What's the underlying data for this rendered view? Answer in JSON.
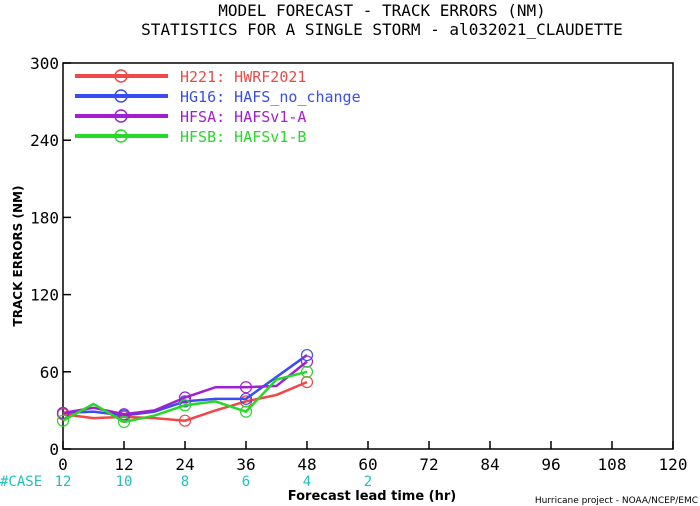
{
  "chart_data": {
    "type": "line",
    "title": "MODEL FORECAST - TRACK ERRORS (NM)",
    "subtitle": "STATISTICS FOR A SINGLE STORM - al032021_CLAUDETTE",
    "xlabel": "Forecast lead time (hr)",
    "ylabel": "TRACK ERRORS (NM)",
    "xlim": [
      0,
      120
    ],
    "ylim": [
      0,
      300
    ],
    "x_ticks": [
      "0",
      "12",
      "24",
      "36",
      "48",
      "60",
      "72",
      "84",
      "96",
      "108",
      "120"
    ],
    "y_ticks": [
      "0",
      "60",
      "120",
      "180",
      "240",
      "300"
    ],
    "grid": false,
    "legend_position": "top-left",
    "x": [
      0,
      6,
      12,
      18,
      24,
      30,
      36,
      42,
      48
    ],
    "series": [
      {
        "name": "H221: HWRF2021",
        "color": "#f04848",
        "values": [
          27,
          24,
          25,
          24,
          22,
          30,
          37,
          42,
          52
        ]
      },
      {
        "name": "HG16: HAFS_no_change",
        "color": "#3a4df0",
        "values": [
          28,
          29,
          26,
          29,
          37,
          39,
          39,
          56,
          73
        ]
      },
      {
        "name": "HFSA: HAFSv1-A",
        "color": "#a020d0",
        "values": [
          28,
          32,
          27,
          30,
          40,
          48,
          48,
          49,
          68
        ]
      },
      {
        "name": "HFSB: HAFSv1-B",
        "color": "#28d828",
        "values": [
          22,
          35,
          21,
          26,
          34,
          37,
          29,
          54,
          60
        ]
      }
    ],
    "cases": {
      "label": "#CASE",
      "color": "#20c0c0",
      "x": [
        0,
        12,
        24,
        36,
        48,
        60
      ],
      "values": [
        "12",
        "10",
        "8",
        "6",
        "4",
        "2"
      ]
    }
  },
  "footer": {
    "credit": "Hurricane project - NOAA/NCEP/EMC"
  }
}
